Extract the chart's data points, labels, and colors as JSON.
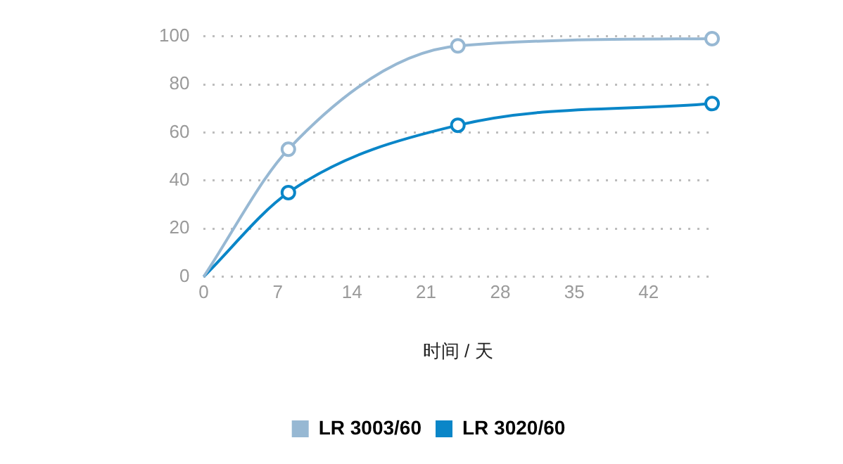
{
  "chart_data": {
    "type": "line",
    "xlabel": "时间 / 天",
    "x": [
      0,
      8,
      24,
      48
    ],
    "series": [
      {
        "name": "LR 3003/60",
        "color": "#97b8d3",
        "values": [
          0,
          53,
          96,
          99
        ]
      },
      {
        "name": "LR 3020/60",
        "color": "#0a86c8",
        "values": [
          0,
          35,
          63,
          72
        ]
      }
    ],
    "xlim": [
      0,
      48
    ],
    "xticks": [
      0,
      7,
      14,
      21,
      28,
      35,
      42
    ],
    "ylim": [
      0,
      100
    ],
    "yticks": [
      0,
      20,
      40,
      60,
      80,
      100
    ],
    "grid": "y",
    "legend": "bottom",
    "marker": "circle",
    "line_style": "solid"
  }
}
